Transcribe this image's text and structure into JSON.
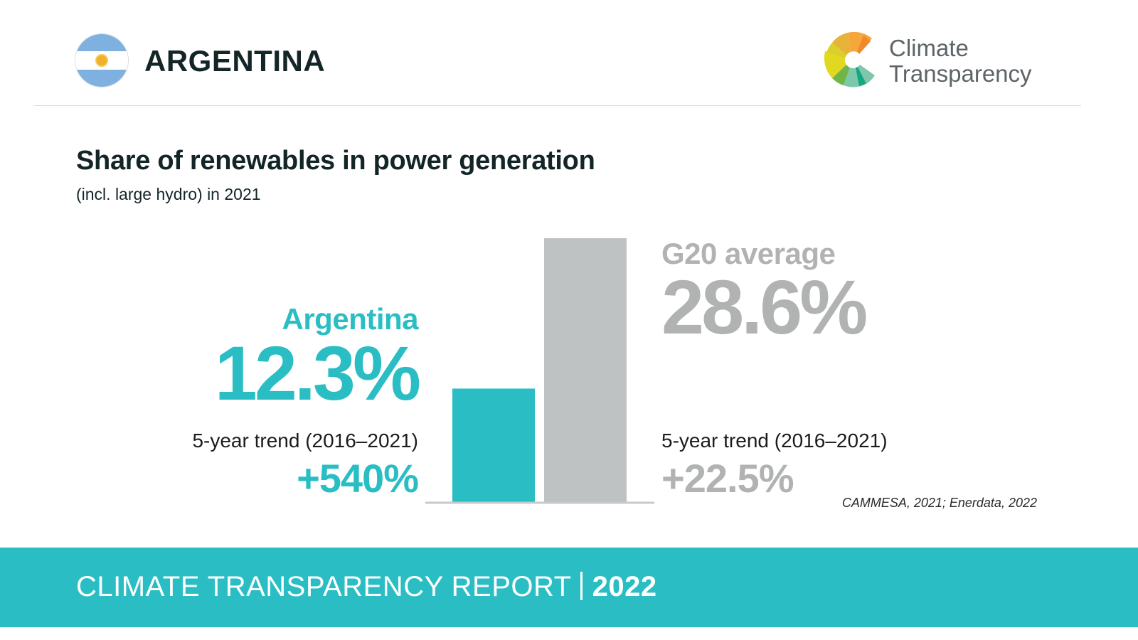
{
  "header": {
    "country": "ARGENTINA",
    "flag_icon": "argentina-flag-icon",
    "logo": {
      "icon": "climate-transparency-logo-icon",
      "line1": "Climate",
      "line2": "Transparency"
    }
  },
  "title": "Share of renewables in power generation",
  "subtitle": "(incl. large hydro) in 2021",
  "argentina": {
    "label": "Argentina",
    "value": "12.3%",
    "trend_label": "5-year trend (2016–2021)",
    "trend_value": "+540%"
  },
  "g20": {
    "label": "G20 average",
    "value": "28.6%",
    "trend_label": "5-year trend (2016–2021)",
    "trend_value": "+22.5%"
  },
  "source": "CAMMESA, 2021; Enerdata, 2022",
  "footer": {
    "report": "CLIMATE TRANSPARENCY REPORT",
    "year": "2022"
  },
  "colors": {
    "accent": "#2abec4",
    "g20": "#bfc2c3",
    "g20_text": "#b1b3b2",
    "dark_text": "#142527"
  },
  "chart_data": {
    "type": "bar",
    "title": "Share of renewables in power generation",
    "subtitle": "(incl. large hydro) in 2021",
    "categories": [
      "Argentina",
      "G20 average"
    ],
    "values": [
      12.3,
      28.6
    ],
    "unit": "%",
    "colors": [
      "#2abec4",
      "#bfc2c3"
    ],
    "trend_5yr": {
      "period": "2016–2021",
      "values": [
        "+540%",
        "+22.5%"
      ]
    },
    "xlabel": "",
    "ylabel": "",
    "ylim": [
      0,
      28.6
    ],
    "grid": false,
    "legend": "none"
  }
}
